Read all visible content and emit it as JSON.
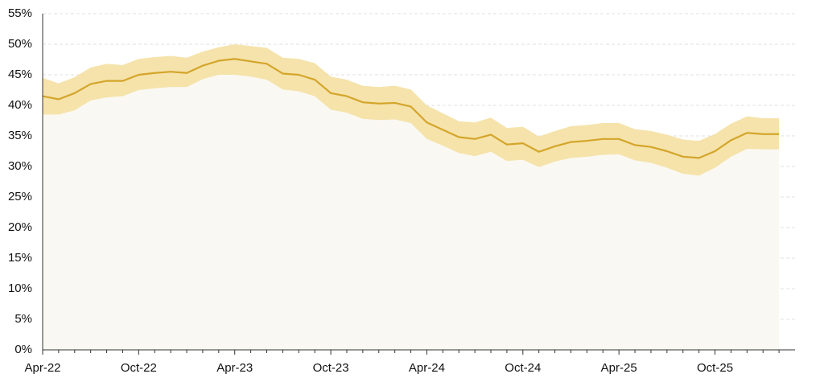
{
  "chart_data": {
    "type": "line-band",
    "categories": [
      "Apr-22",
      null,
      null,
      null,
      null,
      null,
      "Oct-22",
      null,
      null,
      null,
      null,
      null,
      "Apr-23",
      null,
      null,
      null,
      null,
      null,
      "Oct-23",
      null,
      null,
      null,
      null,
      null,
      "Apr-24",
      null,
      null,
      null,
      null,
      null,
      "Oct-24",
      null,
      null,
      null,
      null,
      null,
      "Apr-25",
      null,
      null,
      null,
      null,
      null,
      "Oct-25",
      null,
      null,
      null,
      null
    ],
    "values": [
      41.5,
      41,
      42,
      43.5,
      44,
      44,
      45,
      45.3,
      45.5,
      45.3,
      46.5,
      47.3,
      47.6,
      47.2,
      46.8,
      45.2,
      45,
      44.2,
      42,
      41.5,
      40.5,
      40.3,
      40.4,
      39.8,
      37.2,
      36,
      34.8,
      34.5,
      35.2,
      33.6,
      33.8,
      32.4,
      33.3,
      34,
      34.2,
      34.5,
      34.5,
      33.5,
      33.2,
      32.5,
      31.6,
      31.4,
      32.5,
      34.3,
      35.5,
      35.3,
      35.3
    ],
    "lower": [
      38.5,
      38.5,
      39.2,
      40.8,
      41.3,
      41.5,
      42.5,
      42.8,
      43,
      43,
      44.3,
      45,
      45,
      44.7,
      44.2,
      42.6,
      42.3,
      41.5,
      39.3,
      38.8,
      37.8,
      37.6,
      37.7,
      37.1,
      34.5,
      33.4,
      32.2,
      31.7,
      32.4,
      30.9,
      31.1,
      29.9,
      30.8,
      31.4,
      31.6,
      31.9,
      32,
      31,
      30.6,
      29.8,
      28.8,
      28.5,
      29.8,
      31.6,
      32.9,
      32.8,
      32.8
    ],
    "upper": [
      44.5,
      43.6,
      44.6,
      46.2,
      46.8,
      46.6,
      47.6,
      47.9,
      48.1,
      47.8,
      48.8,
      49.5,
      50,
      49.7,
      49.4,
      47.8,
      47.6,
      46.9,
      44.7,
      44.2,
      43.2,
      43,
      43.2,
      42.6,
      40,
      38.7,
      37.4,
      37.2,
      38,
      36.3,
      36.5,
      34.9,
      35.8,
      36.6,
      36.8,
      37.1,
      37.1,
      36.1,
      35.8,
      35.2,
      34.4,
      34.2,
      35.3,
      37,
      38.2,
      37.9,
      37.9
    ],
    "color": "#d4a52a",
    "band_color": "#f4e0a2",
    "fill_color": "#faf8f2",
    "ylim": [
      0,
      55
    ],
    "yticks": [
      {
        "value": 0,
        "label": "0%"
      },
      {
        "value": 5,
        "label": "5%"
      },
      {
        "value": 10,
        "label": "10%"
      },
      {
        "value": 15,
        "label": "15%"
      },
      {
        "value": 20,
        "label": "20%"
      },
      {
        "value": 25,
        "label": "25%"
      },
      {
        "value": 30,
        "label": "30%"
      },
      {
        "value": 35,
        "label": "35%"
      },
      {
        "value": 40,
        "label": "40%"
      },
      {
        "value": 45,
        "label": "45%"
      },
      {
        "value": 50,
        "label": "50%"
      },
      {
        "value": 55,
        "label": "55%"
      }
    ],
    "grid": true
  }
}
